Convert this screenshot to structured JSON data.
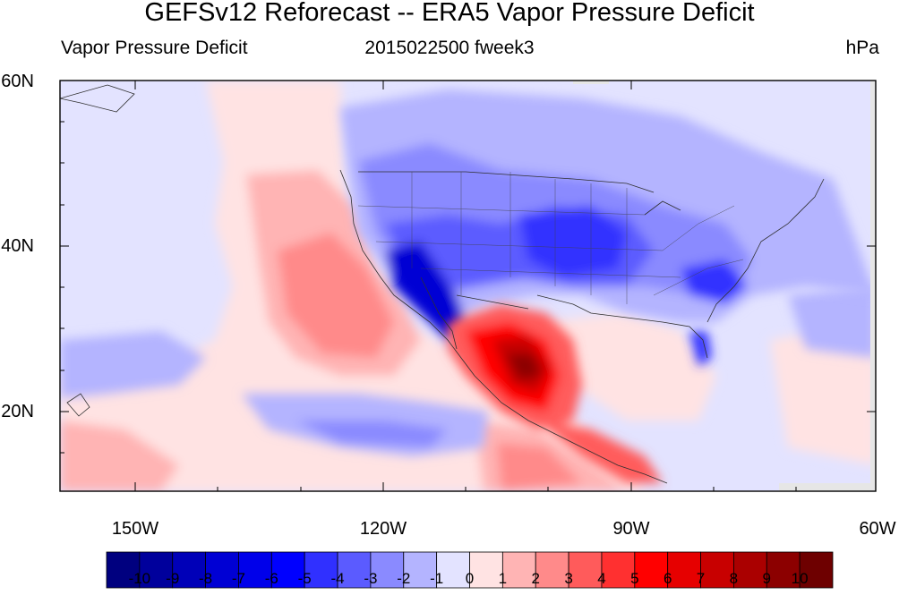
{
  "title": "GEFSv12 Reforecast -- ERA5 Vapor Pressure Deficit",
  "left_string": "Vapor Pressure Deficit",
  "center_string": "2015022500 fweek3",
  "right_string": "hPa",
  "lat_labels": [
    "60N",
    "40N",
    "20N"
  ],
  "lon_labels": [
    "150W",
    "120W",
    "90W",
    "60W"
  ],
  "colorbar": {
    "labels": [
      "-10",
      "-9",
      "-8",
      "-7",
      "-6",
      "-5",
      "-4",
      "-3",
      "-2",
      "-1",
      "0",
      "1",
      "2",
      "3",
      "4",
      "5",
      "6",
      "7",
      "8",
      "9",
      "10"
    ],
    "colors": [
      "#00007f",
      "#00009c",
      "#0000b8",
      "#0000d4",
      "#0000ea",
      "#0000ff",
      "#3030ff",
      "#5b5bff",
      "#8a8aff",
      "#b4b4ff",
      "#e3e3ff",
      "#ffe3e3",
      "#ffb4b4",
      "#ff8a8a",
      "#ff5b5b",
      "#ff3030",
      "#ff0000",
      "#e60000",
      "#c80000",
      "#aa0000",
      "#8c0000",
      "#6e0000"
    ]
  }
}
